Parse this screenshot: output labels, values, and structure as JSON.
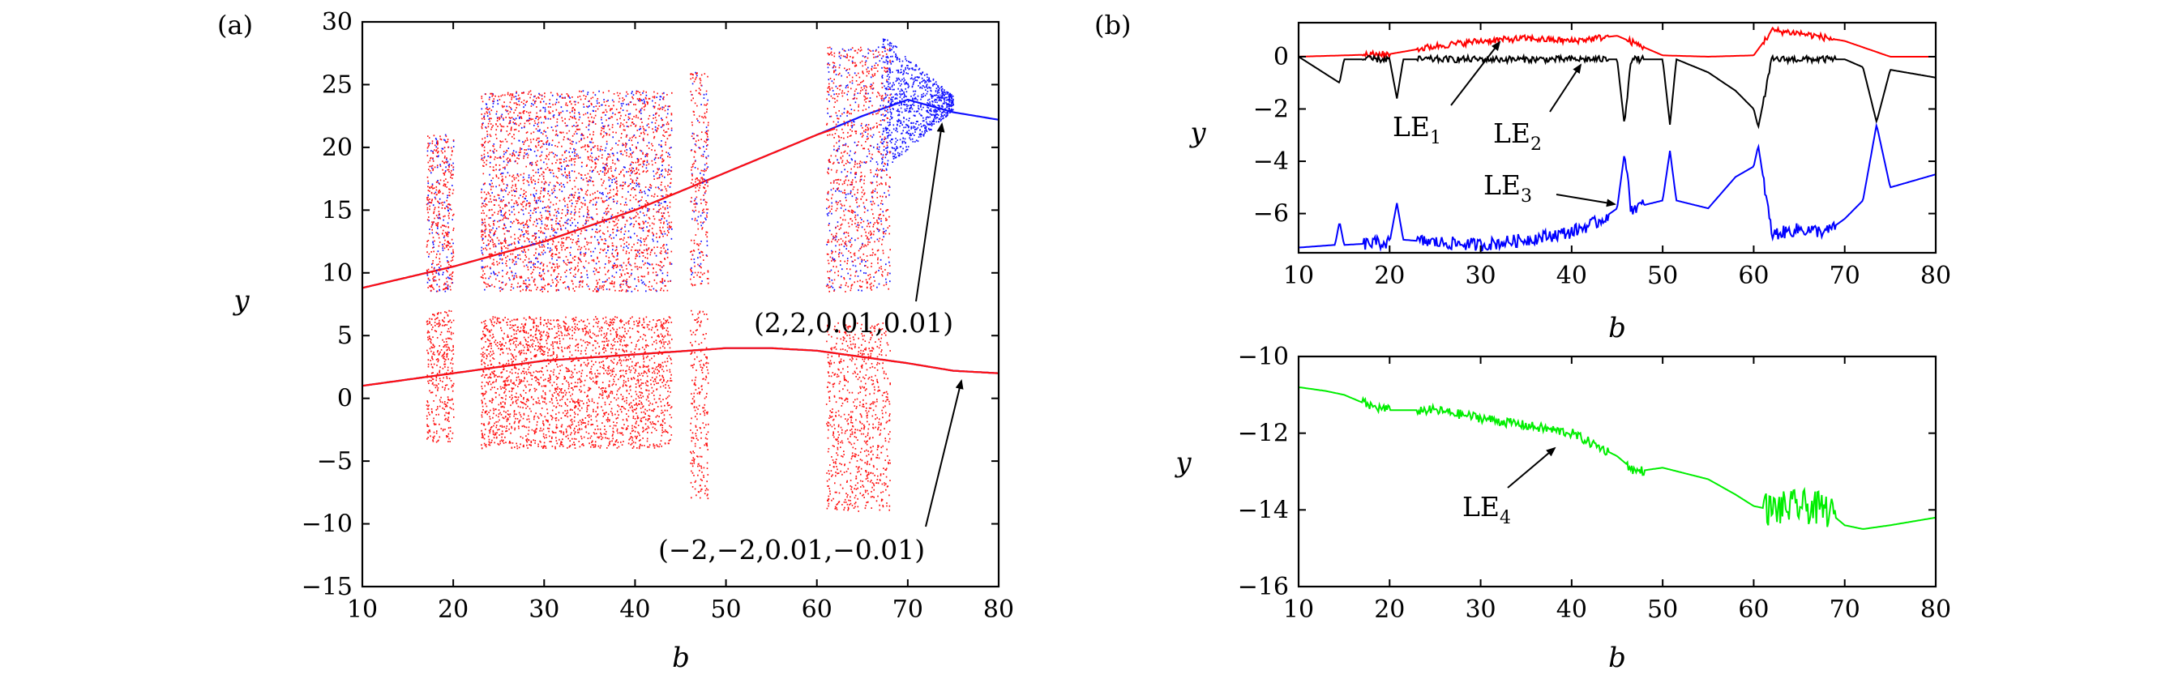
{
  "figure": {
    "panel_a_label": "(a)",
    "panel_b_label": "(b)"
  },
  "chart_data": [
    {
      "id": "a",
      "type": "scatter",
      "xlabel": "b",
      "ylabel": "y",
      "xlim": [
        10,
        80
      ],
      "ylim": [
        -15,
        30
      ],
      "xticks": [
        10,
        20,
        30,
        40,
        50,
        60,
        70,
        80
      ],
      "yticks": [
        -15,
        -10,
        -5,
        0,
        5,
        10,
        15,
        20,
        25,
        30
      ],
      "colors": {
        "ic1": "#1010ff",
        "ic2": "#ff1010"
      },
      "series": [
        {
          "id": "blue_upper",
          "color": "blue",
          "x": [
            10,
            20,
            30,
            40,
            50,
            55,
            60,
            65,
            70,
            75,
            80
          ],
          "y": [
            8.8,
            10.5,
            12.5,
            15,
            18,
            19.5,
            21,
            22.5,
            23.8,
            22.8,
            22.2
          ]
        },
        {
          "id": "blue_lower",
          "color": "blue",
          "x": [
            10,
            20,
            30,
            40,
            50,
            55,
            60,
            65,
            70,
            75,
            80
          ],
          "y": [
            1.0,
            2.0,
            3.0,
            3.5,
            4.0,
            4.0,
            3.8,
            3.3,
            2.8,
            2.2,
            2.0
          ]
        },
        {
          "id": "red_upper",
          "color": "red",
          "x": [
            10,
            20,
            30,
            40,
            50,
            55,
            60,
            62
          ],
          "y": [
            8.8,
            10.5,
            12.5,
            15,
            18,
            19.5,
            21,
            21.5
          ]
        },
        {
          "id": "red_lower",
          "color": "red",
          "x": [
            10,
            20,
            30,
            40,
            50,
            55,
            60,
            65,
            70,
            75,
            80
          ],
          "y": [
            1.0,
            2.0,
            3.0,
            3.5,
            4.0,
            4.0,
            3.8,
            3.3,
            2.8,
            2.2,
            2.0
          ]
        }
      ],
      "annotations": [
        {
          "text": "(2,2,0.01,0.01)",
          "arrow_to": [
            75.5,
            21.5
          ]
        },
        {
          "text": "(−2,−2,0.01,−0.01)",
          "arrow_to": [
            76,
            1.8
          ]
        }
      ]
    },
    {
      "id": "b_top",
      "type": "line",
      "xlabel": "b",
      "ylabel": "y",
      "xlim": [
        10,
        80
      ],
      "ylim": [
        -7.5,
        1.3
      ],
      "xticks": [
        10,
        20,
        30,
        40,
        50,
        60,
        70,
        80
      ],
      "yticks": [
        0,
        -2,
        -4,
        -6
      ],
      "series": [
        {
          "name": "LE1",
          "color": "#ff0000",
          "x": [
            10,
            15,
            20,
            25,
            30,
            35,
            40,
            45,
            50,
            55,
            60,
            62,
            65,
            70,
            75,
            80
          ],
          "y": [
            0.0,
            0.05,
            0.1,
            0.4,
            0.6,
            0.7,
            0.6,
            0.8,
            0.05,
            0.0,
            0.05,
            1.0,
            0.9,
            0.6,
            0.0,
            0.0
          ]
        },
        {
          "name": "LE2",
          "color": "#000000",
          "x": [
            10,
            14.5,
            15,
            20,
            20.8,
            21.5,
            25,
            30,
            40,
            45,
            45.8,
            46.5,
            50,
            50.8,
            51.5,
            55,
            58,
            60,
            60.5,
            62,
            65,
            70,
            72,
            73.5,
            75,
            80
          ],
          "y": [
            0.0,
            -1.0,
            -0.1,
            -0.1,
            -1.6,
            -0.1,
            -0.1,
            -0.1,
            -0.1,
            -0.1,
            -2.6,
            -0.1,
            -0.1,
            -2.6,
            -0.1,
            -0.6,
            -1.3,
            -2.0,
            -2.7,
            -0.1,
            -0.1,
            -0.1,
            -0.4,
            -2.5,
            -0.5,
            -0.8
          ]
        },
        {
          "name": "LE3",
          "color": "#0000ff",
          "x": [
            10,
            14,
            14.5,
            15,
            20,
            20.8,
            21.5,
            25,
            30,
            35,
            40,
            43,
            45,
            45.8,
            46.5,
            50,
            50.8,
            51.5,
            55,
            58,
            60,
            60.5,
            62,
            65,
            68,
            70,
            72,
            73.5,
            75,
            80
          ],
          "y": [
            -7.3,
            -7.2,
            -6.3,
            -7.2,
            -7.1,
            -5.6,
            -7.0,
            -7.1,
            -7.2,
            -7.0,
            -6.7,
            -6.3,
            -5.8,
            -3.7,
            -5.8,
            -5.5,
            -3.6,
            -5.5,
            -5.8,
            -4.6,
            -4.2,
            -3.4,
            -6.8,
            -6.6,
            -6.7,
            -6.2,
            -5.5,
            -2.6,
            -5.0,
            -4.5
          ]
        }
      ],
      "labels": [
        "LE",
        "1",
        "LE",
        "2",
        "LE",
        "3"
      ]
    },
    {
      "id": "b_bottom",
      "type": "line",
      "xlabel": "b",
      "ylabel": "y",
      "xlim": [
        10,
        80
      ],
      "ylim": [
        -16,
        -10
      ],
      "xticks": [
        10,
        20,
        30,
        40,
        50,
        60,
        70,
        80
      ],
      "yticks": [
        -10,
        -12,
        -14,
        -16
      ],
      "series": [
        {
          "name": "LE4",
          "color": "#00ee00",
          "x": [
            10,
            13,
            15,
            18,
            20,
            25,
            30,
            35,
            40,
            45,
            47,
            50,
            55,
            58,
            60,
            62,
            65,
            68,
            70,
            72,
            75,
            80
          ],
          "y": [
            -10.8,
            -10.9,
            -11.0,
            -11.3,
            -11.4,
            -11.4,
            -11.6,
            -11.8,
            -12.0,
            -12.6,
            -13.0,
            -12.9,
            -13.2,
            -13.6,
            -13.9,
            -14.0,
            -13.9,
            -14.0,
            -14.4,
            -14.5,
            -14.4,
            -14.2
          ]
        }
      ],
      "labels": [
        "LE",
        "4"
      ]
    }
  ]
}
